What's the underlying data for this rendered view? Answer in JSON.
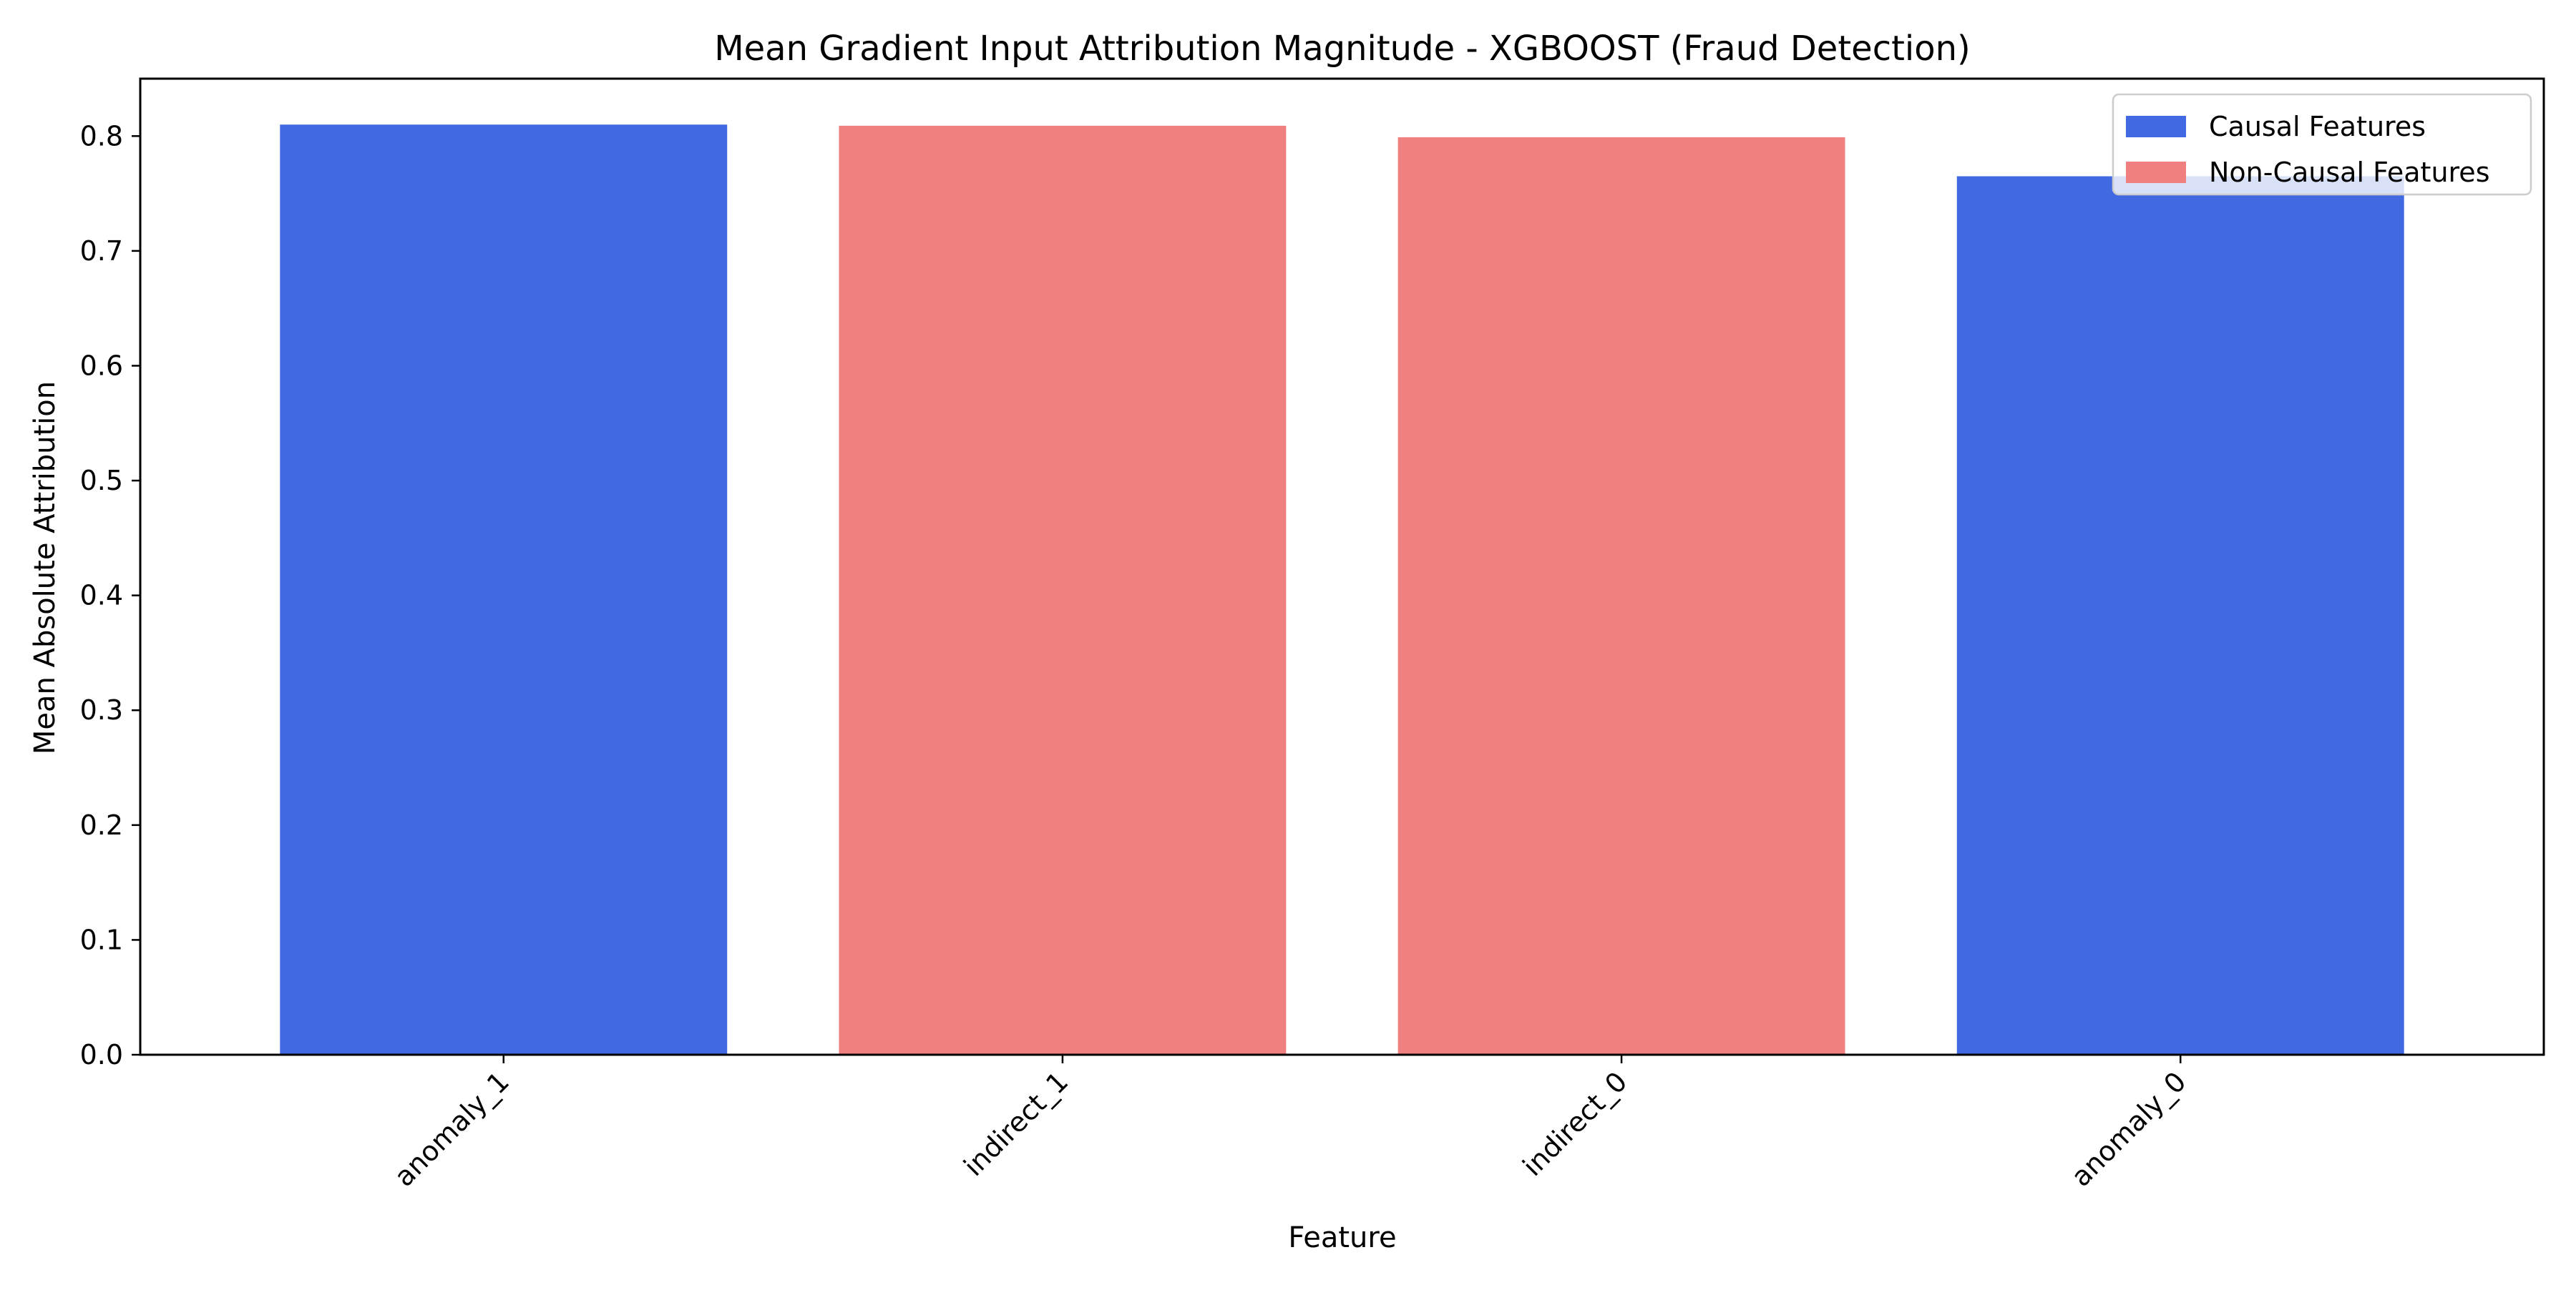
{
  "chart_data": {
    "type": "bar",
    "title": "Mean Gradient Input Attribution Magnitude - XGBOOST (Fraud Detection)",
    "xlabel": "Feature",
    "ylabel": "Mean Absolute Attribution",
    "categories": [
      "anomaly_1",
      "indirect_1",
      "indirect_0",
      "anomaly_0"
    ],
    "values": [
      0.81,
      0.809,
      0.799,
      0.765
    ],
    "bar_groups": [
      "Causal Features",
      "Non-Causal Features",
      "Non-Causal Features",
      "Causal Features"
    ],
    "ylim": [
      0,
      0.85
    ],
    "yticks": [
      0.0,
      0.1,
      0.2,
      0.3,
      0.4,
      0.5,
      0.6,
      0.7,
      0.8
    ],
    "grid": false,
    "legend": {
      "position": "top-right",
      "entries": [
        {
          "label": "Causal Features",
          "color": "#4169e1"
        },
        {
          "label": "Non-Causal Features",
          "color": "#f08080"
        }
      ]
    }
  }
}
